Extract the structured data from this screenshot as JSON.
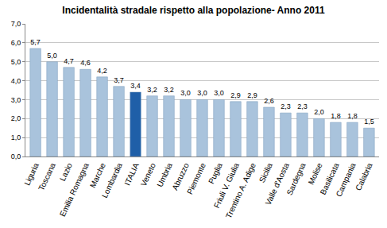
{
  "chart_data": {
    "type": "bar",
    "title": "Incidentalità stradale rispetto alla popolazione- Anno 2011",
    "categories": [
      "Liguria",
      "Toscana",
      "Lazio",
      "Emilia Romagna",
      "Marche",
      "Lombardia",
      "ITALIA",
      "Veneto",
      "Umbria",
      "Abruzzo",
      "Piemonte",
      "Puglia",
      "Friuli V. Giulia",
      "Trentino A. Adige",
      "Sicilia",
      "Valle d'Aosta",
      "Sardegna",
      "Molise",
      "Basilicata",
      "Campania",
      "Calabria"
    ],
    "values": [
      5.7,
      5.0,
      4.7,
      4.6,
      4.2,
      3.7,
      3.4,
      3.2,
      3.2,
      3.0,
      3.0,
      3.0,
      2.9,
      2.9,
      2.6,
      2.3,
      2.3,
      2.0,
      1.8,
      1.8,
      1.5
    ],
    "value_labels": [
      "5,7",
      "5,0",
      "4,7",
      "4,6",
      "4,2",
      "3,7",
      "3,4",
      "3,2",
      "3,2",
      "3,0",
      "3,0",
      "3,0",
      "2,9",
      "2,9",
      "2,6",
      "2,3",
      "2,3",
      "2,0",
      "1,8",
      "1,8",
      "1,5"
    ],
    "colors": [
      "#a9c3dc",
      "#a9c3dc",
      "#a9c3dc",
      "#a9c3dc",
      "#a9c3dc",
      "#a9c3dc",
      "#1f5fa8",
      "#a9c3dc",
      "#a9c3dc",
      "#a9c3dc",
      "#a9c3dc",
      "#a9c3dc",
      "#a9c3dc",
      "#a9c3dc",
      "#a9c3dc",
      "#a9c3dc",
      "#a9c3dc",
      "#a9c3dc",
      "#a9c3dc",
      "#a9c3dc",
      "#a9c3dc"
    ],
    "ylim": [
      0,
      7
    ],
    "yticks": [
      {
        "value": 0,
        "label": "0,0"
      },
      {
        "value": 1,
        "label": "1,0"
      },
      {
        "value": 2,
        "label": "2,0"
      },
      {
        "value": 3,
        "label": "3,0"
      },
      {
        "value": 4,
        "label": "4,0"
      },
      {
        "value": 5,
        "label": "5,0"
      },
      {
        "value": 6,
        "label": "6,0"
      },
      {
        "value": 7,
        "label": "7,0"
      }
    ],
    "grid": true,
    "data_labels": true
  }
}
